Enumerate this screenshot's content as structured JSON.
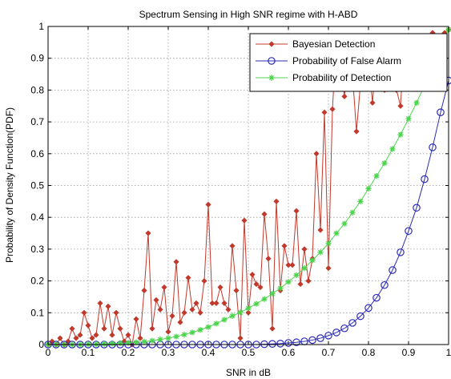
{
  "chart_data": {
    "type": "line",
    "title": "Spectrum Sensing in High SNR regime with H-ABD",
    "xlabel": "SNR in dB",
    "ylabel": "Probability of Density Function(PDF)",
    "xlim": [
      0,
      1
    ],
    "ylim": [
      0,
      1
    ],
    "xticks": [
      "0",
      "0.1",
      "0.2",
      "0.3",
      "0.4",
      "0.5",
      "0.6",
      "0.7",
      "0.8",
      "0.9",
      "1"
    ],
    "yticks": [
      "0",
      "0.1",
      "0.2",
      "0.3",
      "0.4",
      "0.5",
      "0.6",
      "0.7",
      "0.8",
      "0.9",
      "1"
    ],
    "grid": true,
    "legend_position": "top-right",
    "series": [
      {
        "name": "Bayesian Detection",
        "color": "#c0392b",
        "marker": "diamond",
        "x": [
          0,
          0.01,
          0.02,
          0.03,
          0.04,
          0.05,
          0.06,
          0.07,
          0.08,
          0.09,
          0.1,
          0.11,
          0.12,
          0.13,
          0.14,
          0.15,
          0.16,
          0.17,
          0.18,
          0.19,
          0.2,
          0.21,
          0.22,
          0.23,
          0.24,
          0.25,
          0.26,
          0.27,
          0.28,
          0.29,
          0.3,
          0.31,
          0.32,
          0.33,
          0.34,
          0.35,
          0.36,
          0.37,
          0.38,
          0.39,
          0.4,
          0.41,
          0.42,
          0.43,
          0.44,
          0.45,
          0.46,
          0.47,
          0.48,
          0.49,
          0.5,
          0.51,
          0.52,
          0.53,
          0.54,
          0.55,
          0.56,
          0.57,
          0.58,
          0.59,
          0.6,
          0.61,
          0.62,
          0.63,
          0.64,
          0.65,
          0.66,
          0.67,
          0.68,
          0.69,
          0.7,
          0.71,
          0.72,
          0.73,
          0.74,
          0.75,
          0.76,
          0.77,
          0.78,
          0.79,
          0.8,
          0.81,
          0.82,
          0.83,
          0.84,
          0.85,
          0.86,
          0.87,
          0.88,
          0.89,
          0.9,
          0.91,
          0.92,
          0.93,
          0.94,
          0.95,
          0.96,
          0.97,
          0.98,
          0.99,
          1.0
        ],
        "y": [
          0,
          0.01,
          0,
          0.02,
          0,
          0.01,
          0.05,
          0.02,
          0.03,
          0.1,
          0.06,
          0.02,
          0.03,
          0.13,
          0.05,
          0.12,
          0.03,
          0.1,
          0.05,
          0.01,
          0.03,
          0,
          0.08,
          0.02,
          0.17,
          0.35,
          0.05,
          0.14,
          0.11,
          0.18,
          0.04,
          0.09,
          0.26,
          0.07,
          0.1,
          0.21,
          0.11,
          0.13,
          0.1,
          0.2,
          0.44,
          0.13,
          0.13,
          0.18,
          0.13,
          0.11,
          0.31,
          0.17,
          0.02,
          0.39,
          0.1,
          0.22,
          0.19,
          0.18,
          0.41,
          0.27,
          0.05,
          0.45,
          0.17,
          0.31,
          0.25,
          0.25,
          0.42,
          0.19,
          0.3,
          0.2,
          0.27,
          0.6,
          0.36,
          0.73,
          0.24,
          0.74,
          0.96,
          0.88,
          0.78,
          0.94,
          0.85,
          0.67,
          0.82,
          0.94,
          0.9,
          0.76,
          0.92,
          0.97,
          0.8,
          0.92,
          0.97,
          0.8,
          0.75,
          0.97,
          0.9,
          0.85,
          0.96,
          0.9,
          0.96,
          0.92,
          0.98,
          0.93,
          0.88,
          0.98,
          0.99
        ]
      },
      {
        "name": "Probability of False Alarm",
        "color": "#2b2bb8",
        "marker": "circle",
        "x": [
          0,
          0.02,
          0.04,
          0.06,
          0.08,
          0.1,
          0.12,
          0.14,
          0.16,
          0.18,
          0.2,
          0.22,
          0.24,
          0.26,
          0.28,
          0.3,
          0.32,
          0.34,
          0.36,
          0.38,
          0.4,
          0.42,
          0.44,
          0.46,
          0.48,
          0.5,
          0.52,
          0.54,
          0.56,
          0.58,
          0.6,
          0.62,
          0.64,
          0.66,
          0.68,
          0.7,
          0.72,
          0.74,
          0.76,
          0.78,
          0.8,
          0.82,
          0.84,
          0.86,
          0.88,
          0.9,
          0.92,
          0.94,
          0.96,
          0.98,
          1.0
        ],
        "y": [
          0,
          0,
          0,
          0,
          0,
          0,
          0,
          0,
          0,
          0,
          0,
          0,
          0,
          0,
          0,
          0,
          0,
          0,
          0,
          0,
          0,
          0,
          0,
          0,
          0,
          0,
          0,
          0.001,
          0.002,
          0.003,
          0.005,
          0.007,
          0.01,
          0.014,
          0.02,
          0.028,
          0.038,
          0.051,
          0.068,
          0.089,
          0.115,
          0.147,
          0.187,
          0.234,
          0.29,
          0.357,
          0.43,
          0.52,
          0.62,
          0.73,
          0.83
        ]
      },
      {
        "name": "Probability of Detection",
        "color": "#4cd44c",
        "marker": "star",
        "x": [
          0,
          0.02,
          0.04,
          0.06,
          0.08,
          0.1,
          0.12,
          0.14,
          0.16,
          0.18,
          0.2,
          0.22,
          0.24,
          0.26,
          0.28,
          0.3,
          0.32,
          0.34,
          0.36,
          0.38,
          0.4,
          0.42,
          0.44,
          0.46,
          0.48,
          0.5,
          0.52,
          0.54,
          0.56,
          0.58,
          0.6,
          0.62,
          0.64,
          0.66,
          0.68,
          0.7,
          0.72,
          0.74,
          0.76,
          0.78,
          0.8,
          0.82,
          0.84,
          0.86,
          0.88,
          0.9,
          0.92,
          0.94,
          0.96,
          0.98,
          1.0
        ],
        "y": [
          0,
          0,
          0,
          0,
          0,
          0.001,
          0.001,
          0.002,
          0.003,
          0.004,
          0.005,
          0.007,
          0.009,
          0.012,
          0.016,
          0.02,
          0.025,
          0.031,
          0.038,
          0.046,
          0.055,
          0.066,
          0.078,
          0.09,
          0.101,
          0.114,
          0.128,
          0.143,
          0.16,
          0.177,
          0.197,
          0.218,
          0.24,
          0.265,
          0.29,
          0.318,
          0.35,
          0.38,
          0.415,
          0.45,
          0.49,
          0.53,
          0.57,
          0.615,
          0.66,
          0.71,
          0.76,
          0.815,
          0.87,
          0.93,
          0.99
        ]
      }
    ]
  }
}
